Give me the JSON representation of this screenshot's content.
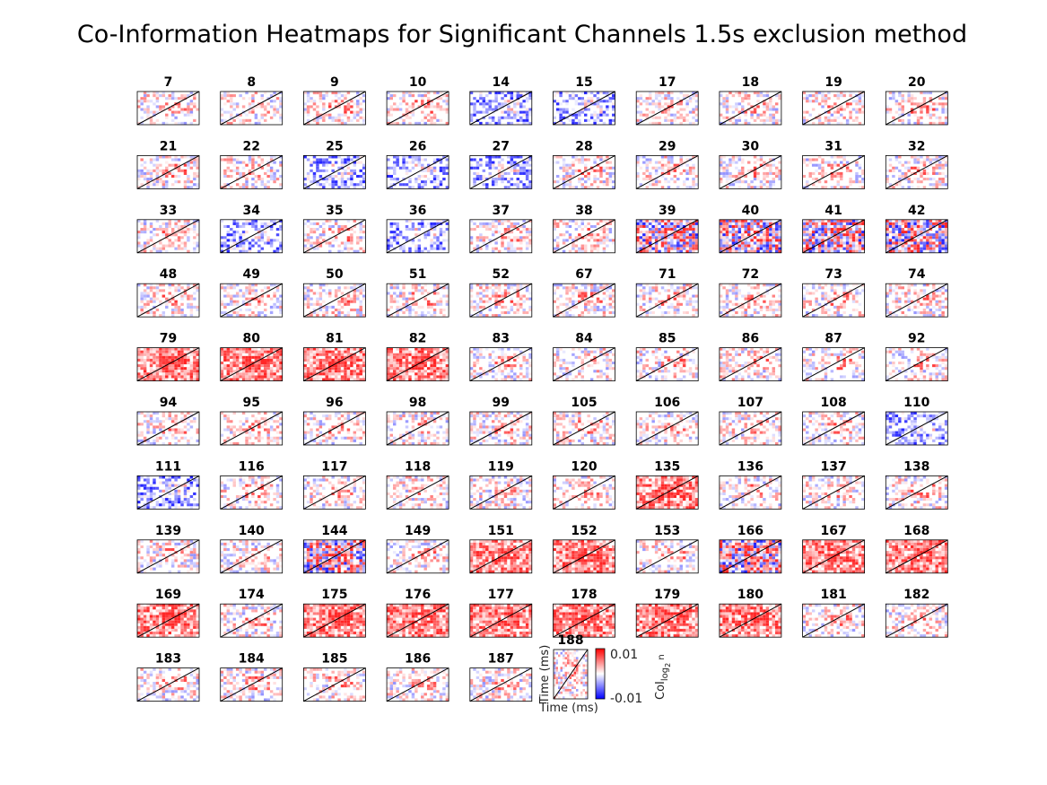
{
  "chart_data": {
    "type": "heatmap",
    "title": "Co-Information Heatmaps for Significant Channels 1.5s exclusion method",
    "channels": [
      7,
      8,
      9,
      10,
      14,
      15,
      17,
      18,
      19,
      20,
      21,
      22,
      25,
      26,
      27,
      28,
      29,
      30,
      31,
      32,
      33,
      34,
      35,
      36,
      37,
      38,
      39,
      40,
      41,
      42,
      48,
      49,
      50,
      51,
      52,
      67,
      71,
      72,
      73,
      74,
      79,
      80,
      81,
      82,
      83,
      84,
      85,
      86,
      87,
      92,
      94,
      95,
      96,
      98,
      99,
      105,
      106,
      107,
      108,
      110,
      111,
      116,
      117,
      118,
      119,
      120,
      135,
      136,
      137,
      138,
      139,
      140,
      144,
      149,
      151,
      152,
      153,
      166,
      167,
      168,
      169,
      174,
      175,
      176,
      177,
      178,
      179,
      180,
      181,
      182,
      183,
      184,
      185,
      186,
      187,
      188
    ],
    "xlabel": "Time (ms)",
    "ylabel": "Time (ms)",
    "colorbar": {
      "max_label": "0.01",
      "min_label": "-0.01",
      "label_main": "CoI",
      "label_sub": "log",
      "label_subsub": "2",
      "label_tail": " n",
      "range": [
        -0.01,
        0.01
      ],
      "colormap": [
        "#0000ff",
        "#ffffff",
        "#ff0000"
      ]
    },
    "layout": {
      "columns": 10,
      "diagonal_line": true,
      "last_panel_axis_labels": true
    },
    "panel_intensity": {
      "positive_dominant": [
        79,
        80,
        81,
        82,
        135,
        151,
        152,
        167,
        168,
        169,
        175,
        176,
        177,
        178,
        179,
        180
      ],
      "negative_dominant": [
        14,
        15,
        25,
        26,
        27,
        34,
        36,
        110,
        111
      ],
      "mixed_strong": [
        39,
        40,
        41,
        42,
        144,
        166
      ]
    }
  }
}
